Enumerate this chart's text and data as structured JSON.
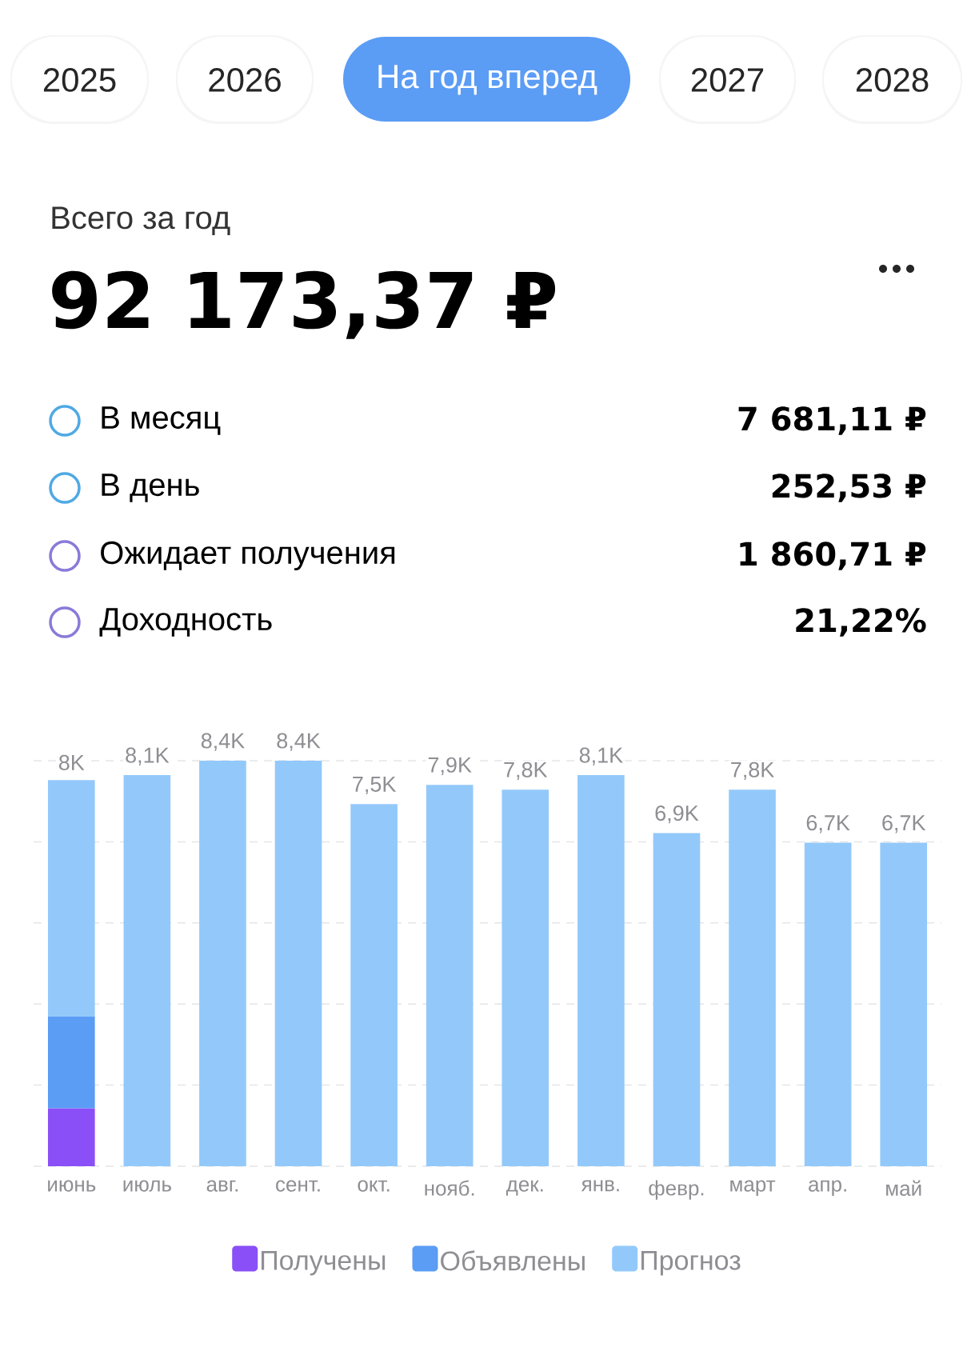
{
  "chart_data": {
    "type": "bar",
    "stacked": true,
    "categories": [
      "июнь",
      "июль",
      "авг.",
      "сент.",
      "окт.",
      "нояб.",
      "дек.",
      "янв.",
      "февр.",
      "март",
      "апр.",
      "май"
    ],
    "series": [
      {
        "name": "Получены",
        "color": "#8a4ff7",
        "values": [
          1.2,
          null,
          null,
          null,
          null,
          null,
          null,
          null,
          null,
          null,
          null,
          null
        ]
      },
      {
        "name": "Объявлены",
        "color": "#5b9cf5",
        "values": [
          1.9,
          null,
          null,
          null,
          null,
          null,
          null,
          null,
          null,
          null,
          null,
          null
        ]
      },
      {
        "name": "Прогноз",
        "color": "#93c9fa",
        "values": [
          4.9,
          8.1,
          8.4,
          8.4,
          7.5,
          7.9,
          7.8,
          8.1,
          6.9,
          7.8,
          6.7,
          6.7
        ],
        "value_labels": [
          null,
          "8,1K",
          "8,4K",
          "8,4K",
          "7,5K",
          "7,9K",
          "7,8K",
          "8,1K",
          "6,9K",
          "7,8K",
          "6,7K",
          "6,7K"
        ]
      }
    ],
    "totals": [
      "8K",
      null,
      null,
      null,
      null,
      null,
      null,
      null,
      null,
      null,
      null,
      null
    ],
    "grid": "y",
    "legend": "bottom",
    "annotations": [
      "2025",
      "2026",
      "На год вперед",
      "2027",
      "2028",
      "Всего за год",
      "92 173,37 ₽",
      "В месяц",
      "7 681,11 ₽",
      "В день",
      "252,53 ₽",
      "Ожидает получения",
      "1 860,71 ₽",
      "Доходность",
      "21,22%"
    ]
  }
}
